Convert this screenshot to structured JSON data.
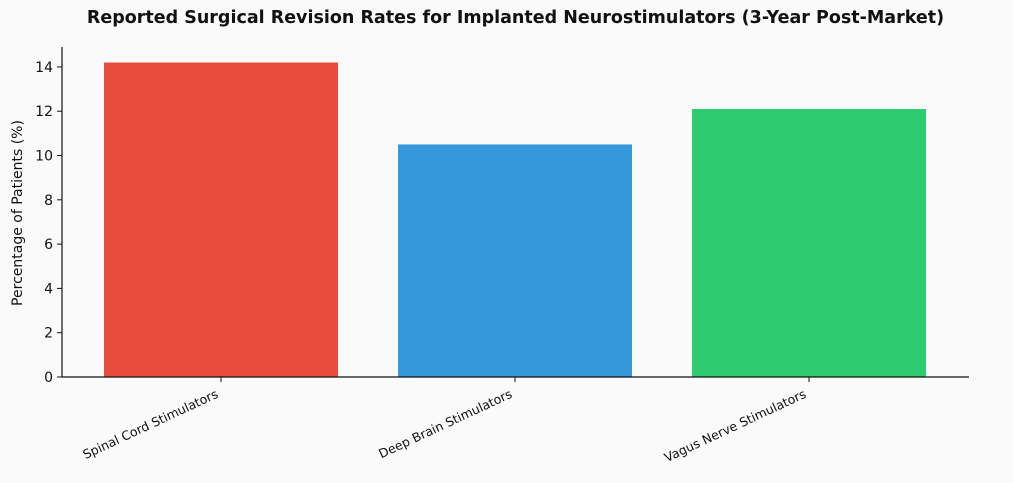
{
  "chart_data": {
    "type": "bar",
    "title": "Reported Surgical Revision Rates for Implanted Neurostimulators (3-Year Post-Market)",
    "xlabel": "",
    "ylabel": "Percentage of Patients (%)",
    "categories": [
      "Spinal Cord Stimulators",
      "Deep Brain Stimulators",
      "Vagus Nerve Stimulators"
    ],
    "values": [
      14.2,
      10.5,
      12.1
    ],
    "colors": [
      "#e74c3c",
      "#3498db",
      "#2ecc71"
    ],
    "ylim": [
      0,
      14.9
    ],
    "yticks": [
      0,
      2,
      4,
      6,
      8,
      10,
      12,
      14
    ],
    "grid": false,
    "legend": "none"
  }
}
